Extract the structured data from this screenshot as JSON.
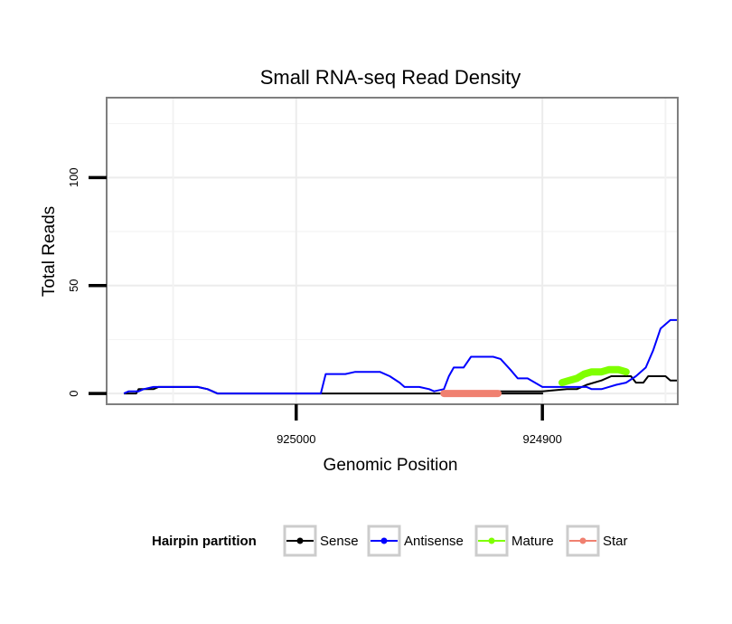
{
  "chart_data": {
    "type": "line",
    "title": "Small RNA-seq Read Density",
    "xlabel": "Genomic Position",
    "ylabel": "Total Reads",
    "xlim": [
      925077,
      924845
    ],
    "ylim": [
      -5,
      137
    ],
    "x_reversed": true,
    "x_ticks": [
      925000,
      924900
    ],
    "x_tick_labels": [
      "925000",
      "924900"
    ],
    "y_ticks": [
      0,
      50,
      100
    ],
    "y_tick_labels": [
      "0",
      "50",
      "100"
    ],
    "grid": true,
    "legend": {
      "title": "Hairpin partition",
      "position": "bottom",
      "items": [
        {
          "name": "Sense",
          "color": "#000000"
        },
        {
          "name": "Antisense",
          "color": "#0000ff"
        },
        {
          "name": "Mature",
          "color": "#7fff00"
        },
        {
          "name": "Star",
          "color": "#f08070"
        }
      ]
    },
    "series": [
      {
        "name": "Sense",
        "color": "#000000",
        "style": "line",
        "points": [
          [
            925070,
            0
          ],
          [
            925065,
            0
          ],
          [
            925064,
            2
          ],
          [
            925058,
            2
          ],
          [
            925056,
            3
          ],
          [
            925048,
            3
          ],
          [
            925040,
            3
          ],
          [
            925036,
            2
          ],
          [
            925032,
            0
          ],
          [
            925000,
            0
          ],
          [
            924900,
            0
          ],
          [
            924960,
            0
          ],
          [
            924936,
            0
          ],
          [
            924934,
            1
          ],
          [
            924916,
            1
          ],
          [
            924900,
            1
          ],
          [
            924890,
            2
          ],
          [
            924886,
            2
          ],
          [
            924882,
            4
          ],
          [
            924876,
            6
          ],
          [
            924872,
            8
          ],
          [
            924864,
            8
          ],
          [
            924862,
            5
          ],
          [
            924859,
            5
          ],
          [
            924857,
            8
          ],
          [
            924850,
            8
          ],
          [
            924848,
            6
          ],
          [
            924845,
            6
          ]
        ]
      },
      {
        "name": "Antisense",
        "color": "#0000ff",
        "style": "line",
        "points": [
          [
            925070,
            0
          ],
          [
            925068,
            1
          ],
          [
            925064,
            1
          ],
          [
            925062,
            2
          ],
          [
            925058,
            3
          ],
          [
            925040,
            3
          ],
          [
            925036,
            2
          ],
          [
            925032,
            0
          ],
          [
            925000,
            0
          ],
          [
            924990,
            0
          ],
          [
            924988,
            9
          ],
          [
            924980,
            9
          ],
          [
            924976,
            10
          ],
          [
            924966,
            10
          ],
          [
            924962,
            8
          ],
          [
            924958,
            5
          ],
          [
            924956,
            3
          ],
          [
            924950,
            3
          ],
          [
            924946,
            2
          ],
          [
            924944,
            1
          ],
          [
            924940,
            2
          ],
          [
            924938,
            8
          ],
          [
            924936,
            12
          ],
          [
            924932,
            12
          ],
          [
            924929,
            17
          ],
          [
            924920,
            17
          ],
          [
            924917,
            16
          ],
          [
            924913,
            11
          ],
          [
            924910,
            7
          ],
          [
            924906,
            7
          ],
          [
            924903,
            5
          ],
          [
            924900,
            3
          ],
          [
            924890,
            3
          ],
          [
            924882,
            3
          ],
          [
            924880,
            2
          ],
          [
            924876,
            2
          ],
          [
            924873,
            3
          ],
          [
            924870,
            4
          ],
          [
            924866,
            5
          ],
          [
            924862,
            8
          ],
          [
            924858,
            12
          ],
          [
            924855,
            20
          ],
          [
            924852,
            30
          ],
          [
            924848,
            34
          ],
          [
            924845,
            34
          ]
        ]
      },
      {
        "name": "Mature",
        "color": "#7fff00",
        "style": "band",
        "points": [
          [
            924892,
            5
          ],
          [
            924889,
            6
          ],
          [
            924886,
            7
          ],
          [
            924883,
            9
          ],
          [
            924880,
            10
          ],
          [
            924876,
            10
          ],
          [
            924873,
            11
          ],
          [
            924869,
            11
          ],
          [
            924866,
            10
          ]
        ]
      },
      {
        "name": "Star",
        "color": "#f08070",
        "style": "band",
        "points": [
          [
            924940,
            0
          ],
          [
            924932,
            0
          ],
          [
            924924,
            0
          ],
          [
            924918,
            0
          ]
        ]
      }
    ]
  }
}
